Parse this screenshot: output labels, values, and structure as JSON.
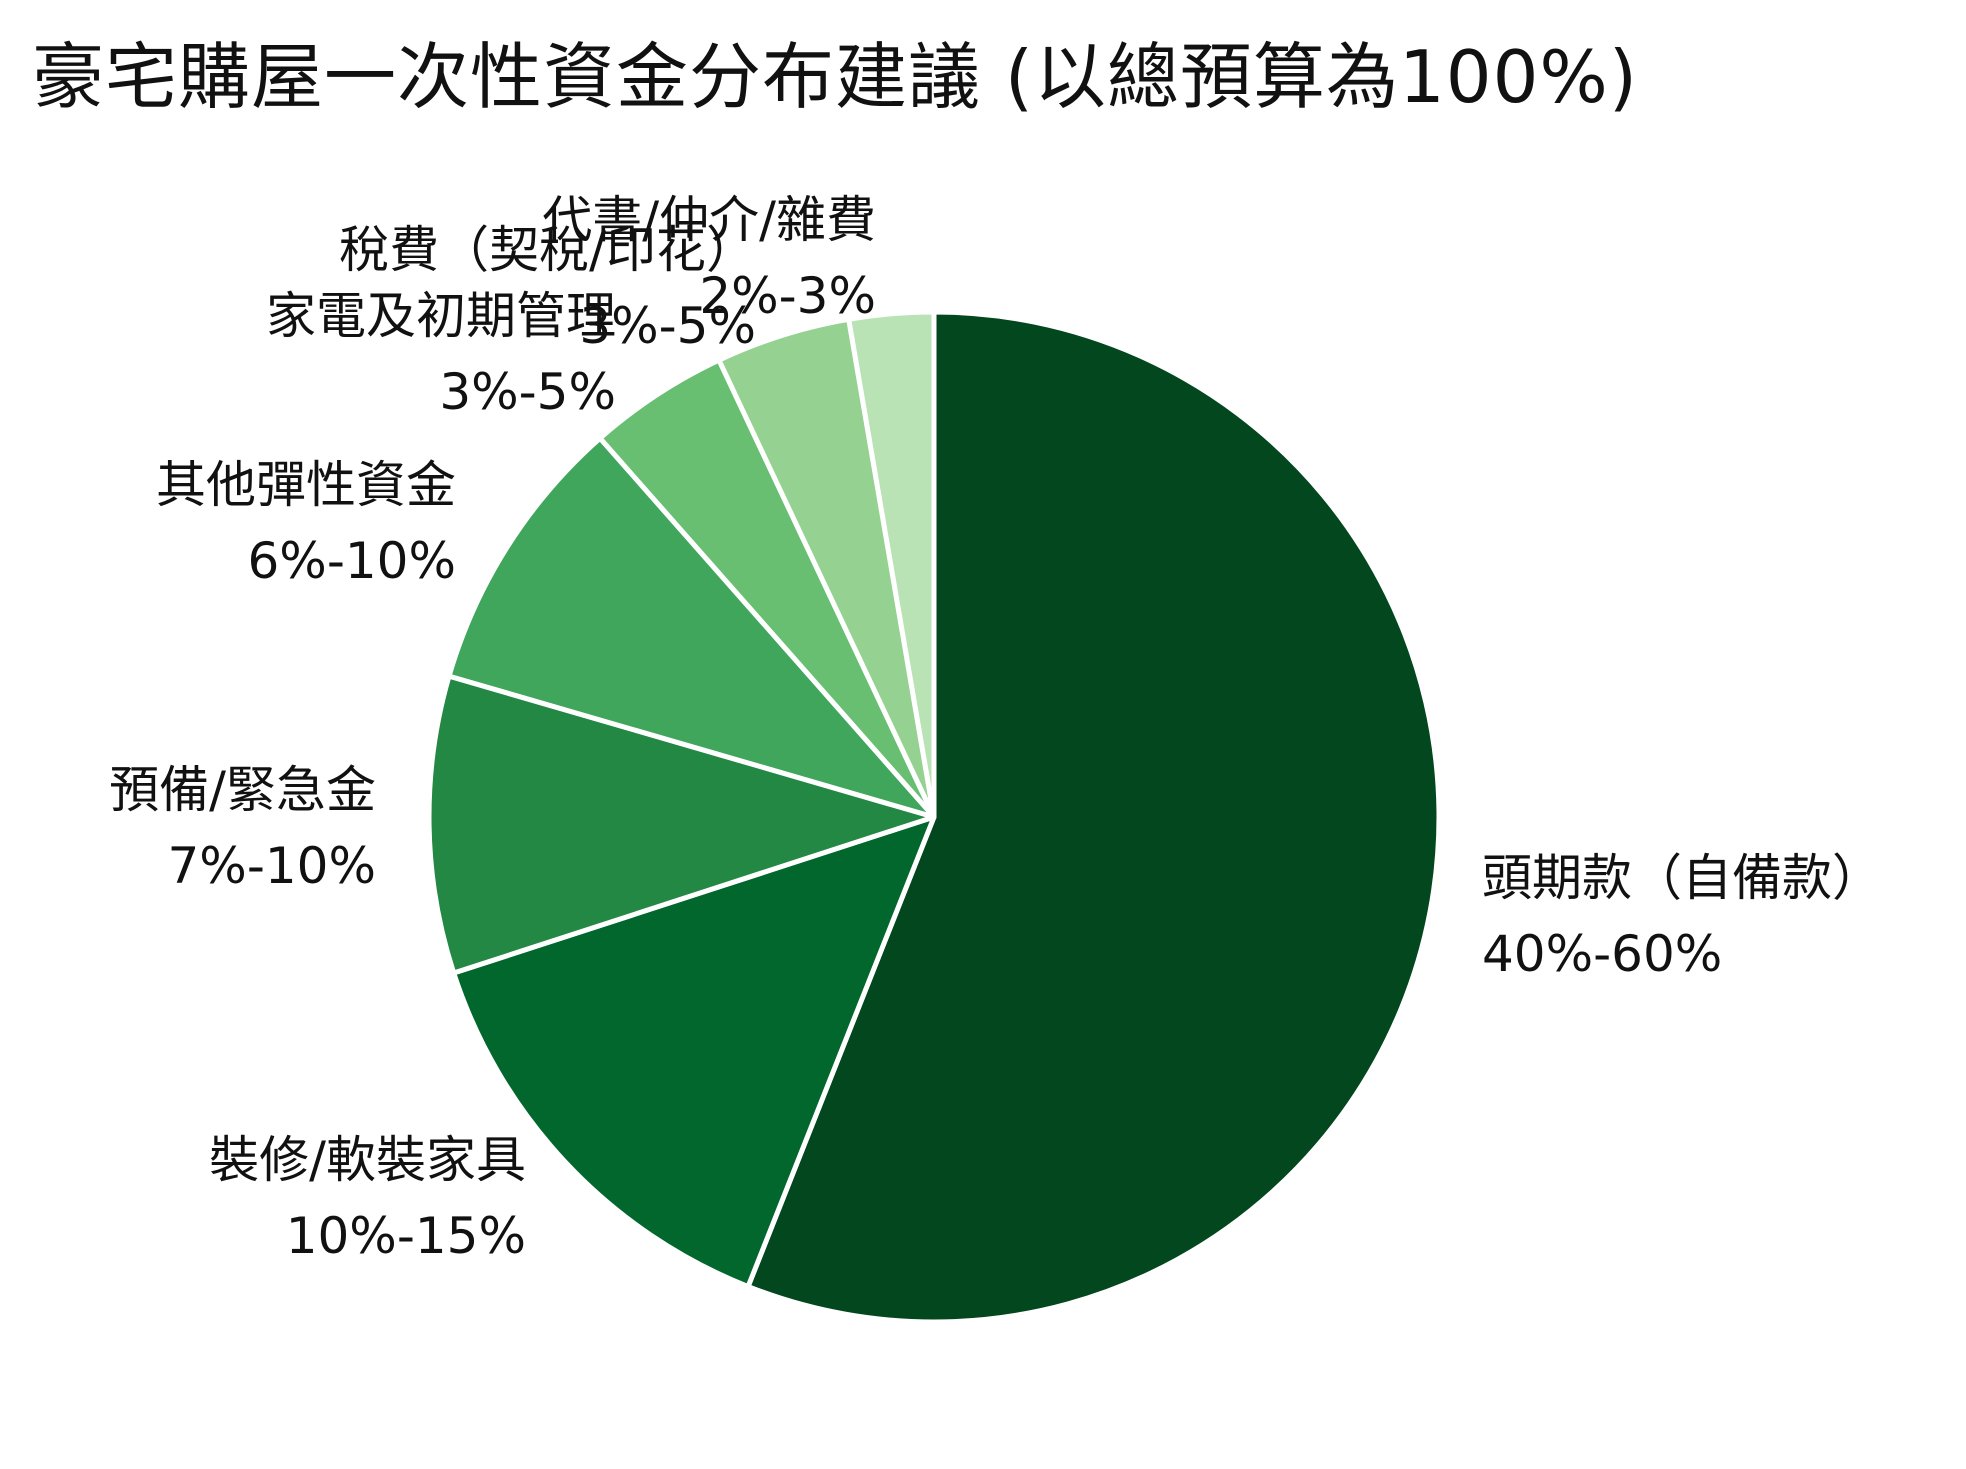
{
  "chart_data": {
    "type": "pie",
    "title": "豪宅購屋一次性資金分布建議 (以總預算為100%)",
    "slices": [
      {
        "label": "頭期款（自備款）",
        "range": "40%-60%",
        "value": 56.0,
        "color": "#02471e"
      },
      {
        "label": "裝修/軟裝家具",
        "range": "10%-15%",
        "value": 14.0,
        "color": "#02672d"
      },
      {
        "label": "預備/緊急金",
        "range": "7%-10%",
        "value": 9.5,
        "color": "#238844"
      },
      {
        "label": "其他彈性資金",
        "range": "6%-10%",
        "value": 9.0,
        "color": "#40a65c"
      },
      {
        "label": "家電及初期管理",
        "range": "3%-5%",
        "value": 4.5,
        "color": "#68bf71"
      },
      {
        "label": "稅費（契稅/印花）",
        "range": "3%-5%",
        "value": 4.3,
        "color": "#95d291"
      },
      {
        "label": "代書/仲介/雜費",
        "range": "2%-3%",
        "value": 2.7,
        "color": "#b9e3b4"
      }
    ],
    "start_angle": "12 o'clock",
    "direction": "clockwise",
    "legend": "none"
  }
}
